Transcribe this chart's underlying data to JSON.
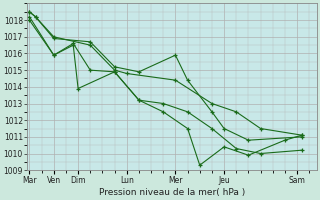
{
  "xlabel": "Pression niveau de la mer( hPa )",
  "bg_color": "#cce8dd",
  "plot_bg_color": "#c8e8e8",
  "grid_color": "#aaaaaa",
  "line_color": "#1a6b1a",
  "ylim": [
    1009,
    1019
  ],
  "yticks": [
    1009,
    1010,
    1011,
    1012,
    1013,
    1014,
    1015,
    1016,
    1017,
    1018
  ],
  "xtick_positions": [
    0,
    1,
    2,
    4,
    6,
    8,
    11
  ],
  "xtick_labels": [
    "Mar",
    "Ven",
    "Dim",
    "Lun",
    "Mer",
    "Jeu",
    "Sam"
  ],
  "xlim": [
    -0.1,
    11.8
  ],
  "series": [
    {
      "x": [
        0,
        0.25,
        1.0,
        2.5,
        3.5,
        4.0,
        6.0,
        7.5,
        8.5,
        9.5,
        11.2
      ],
      "y": [
        1018.5,
        1018.2,
        1017.0,
        1016.5,
        1015.0,
        1014.8,
        1014.4,
        1013.0,
        1012.5,
        1011.5,
        1011.1
      ]
    },
    {
      "x": [
        0,
        0.25,
        1.0,
        2.5,
        3.5,
        4.5,
        6.0,
        6.5,
        7.5,
        8.0,
        9.0,
        11.2
      ],
      "y": [
        1018.5,
        1018.2,
        1016.9,
        1016.7,
        1015.2,
        1014.9,
        1015.9,
        1014.4,
        1012.5,
        1011.5,
        1010.8,
        1011.0
      ]
    },
    {
      "x": [
        0,
        1.0,
        1.8,
        2.5,
        3.5,
        4.5,
        5.5,
        6.5,
        7.5,
        8.5,
        9.5,
        11.2
      ],
      "y": [
        1018.2,
        1015.9,
        1016.6,
        1015.0,
        1014.9,
        1013.2,
        1013.0,
        1012.5,
        1011.5,
        1010.3,
        1010.0,
        1010.2
      ]
    },
    {
      "x": [
        0,
        1.0,
        1.8,
        2.0,
        3.5,
        4.5,
        5.5,
        6.5,
        7.0,
        8.0,
        9.0,
        10.5,
        11.2
      ],
      "y": [
        1018.0,
        1015.9,
        1016.5,
        1013.9,
        1014.9,
        1013.2,
        1012.5,
        1011.5,
        1009.3,
        1010.4,
        1009.9,
        1010.8,
        1011.1
      ]
    }
  ]
}
